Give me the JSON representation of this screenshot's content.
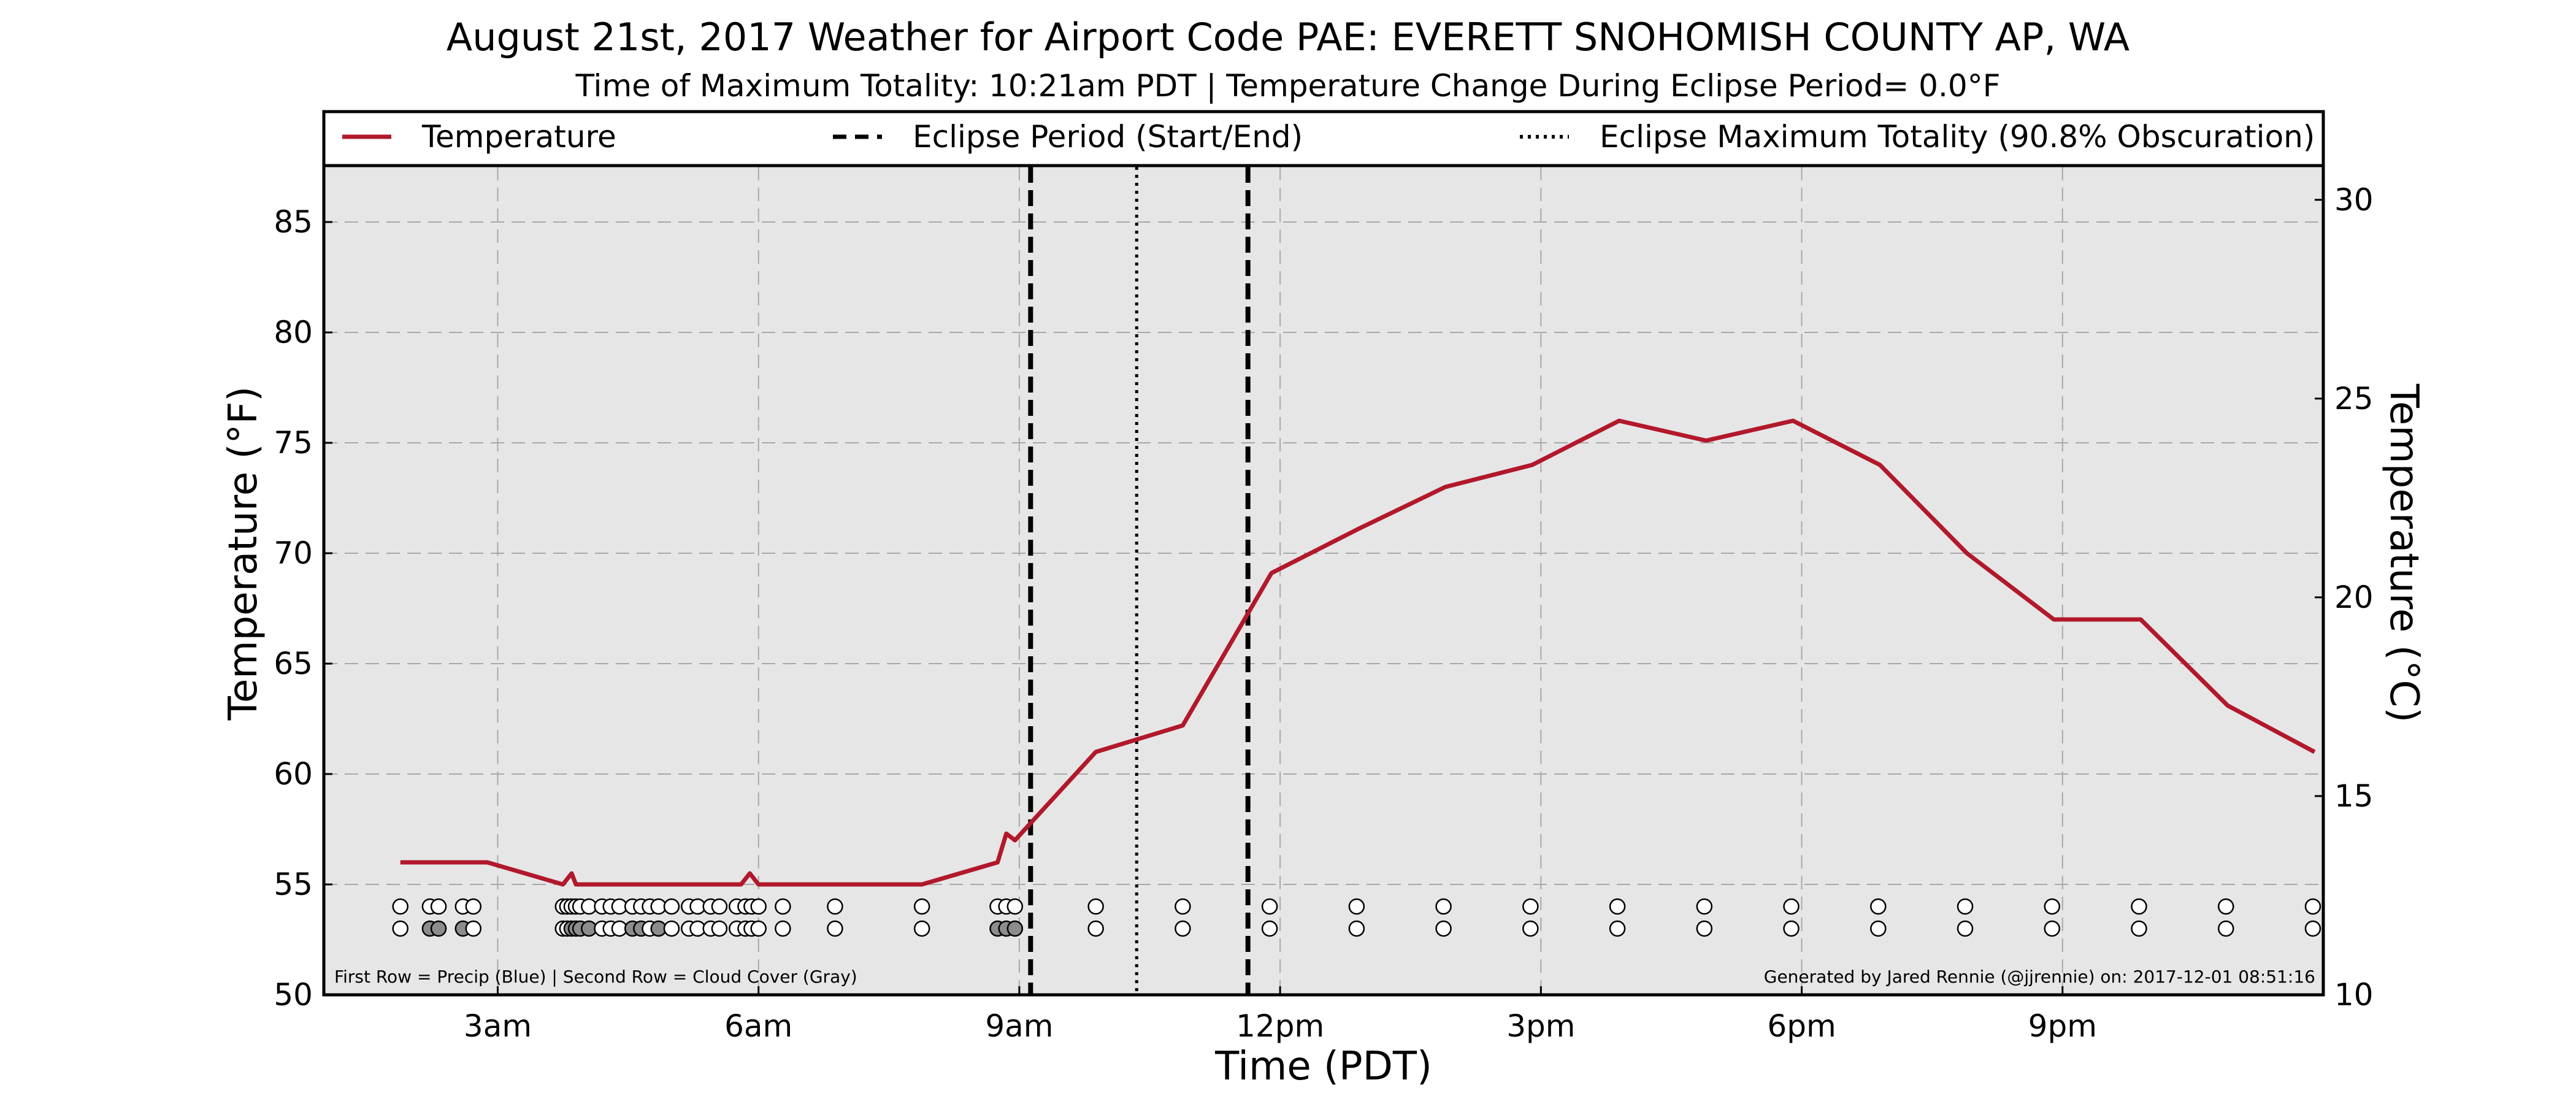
{
  "title": "August 21st, 2017 Weather for Airport Code PAE: EVERETT SNOHOMISH COUNTY AP, WA",
  "subtitle": "Time of Maximum Totality: 10:21am PDT | Temperature Change During Eclipse Period= 0.0°F",
  "legend": {
    "temperature": "Temperature",
    "eclipse_period": "Eclipse Period (Start/End)",
    "max_totality": "Eclipse Maximum Totality (90.8% Obscuration)"
  },
  "footer_left": "First Row = Precip (Blue) | Second Row = Cloud Cover (Gray)",
  "footer_right": "Generated by Jared Rennie (@jjrennie) on: 2017-12-01 08:51:16",
  "colors": {
    "temperature_line": "#b2182b",
    "plot_background": "#e6e6e6",
    "grid": "#a8a8a8",
    "cloud_fill": "#8c8c8c"
  },
  "chart_data": {
    "type": "line",
    "title": "August 21st, 2017 Weather for Airport Code PAE: EVERETT SNOHOMISH COUNTY AP, WA",
    "xlabel": "Time (PDT)",
    "ylabel": "Temperature (°F)",
    "ylabel_right": "Temperature (°C)",
    "xlim": [
      1.0,
      24.0
    ],
    "ylim": [
      50,
      87.5
    ],
    "ylim_right": [
      10,
      30.83
    ],
    "grid": true,
    "legend_position": "top",
    "x_ticks": [
      {
        "x": 3,
        "label": "3am"
      },
      {
        "x": 6,
        "label": "6am"
      },
      {
        "x": 9,
        "label": "9am"
      },
      {
        "x": 12,
        "label": "12pm"
      },
      {
        "x": 15,
        "label": "3pm"
      },
      {
        "x": 18,
        "label": "6pm"
      },
      {
        "x": 21,
        "label": "9pm"
      }
    ],
    "y_ticks": [
      50,
      55,
      60,
      65,
      70,
      75,
      80,
      85
    ],
    "y_ticks_right": [
      10,
      15,
      20,
      25,
      30
    ],
    "series": [
      {
        "name": "Temperature",
        "x": [
          1.88,
          2.88,
          3.75,
          3.85,
          3.9,
          5.8,
          5.9,
          6.0,
          7.0,
          7.88,
          8.75,
          8.85,
          8.95,
          9.88,
          10.88,
          11.9,
          12.9,
          13.9,
          14.9,
          15.9,
          16.9,
          17.9,
          18.9,
          19.9,
          20.9,
          21.9,
          22.9,
          23.9
        ],
        "y": [
          56,
          56,
          55,
          55.5,
          55,
          55,
          55.5,
          55,
          55,
          55,
          56,
          57.3,
          57,
          61,
          62.2,
          69.1,
          71.1,
          73,
          74,
          76,
          75.1,
          76,
          74,
          70,
          67,
          67,
          63.1,
          61
        ]
      }
    ],
    "eclipse_start": 9.13,
    "eclipse_end": 11.63,
    "max_totality": 10.35,
    "precip_row_times": [
      1.88,
      2.22,
      2.32,
      2.6,
      2.72,
      3.75,
      3.8,
      3.85,
      3.9,
      3.95,
      4.05,
      4.2,
      4.3,
      4.4,
      4.55,
      4.65,
      4.75,
      4.85,
      5.0,
      5.2,
      5.3,
      5.45,
      5.55,
      5.75,
      5.85,
      5.92,
      6.0,
      6.28,
      6.88,
      7.88,
      8.75,
      8.85,
      8.95,
      9.88,
      10.88,
      11.88,
      12.88,
      13.88,
      14.88,
      15.88,
      16.88,
      17.88,
      18.88,
      19.88,
      20.88,
      21.88,
      22.88,
      23.88
    ],
    "cloud_row_times": [
      1.88,
      2.22,
      2.32,
      2.6,
      2.72,
      3.75,
      3.8,
      3.85,
      3.9,
      3.95,
      4.05,
      4.2,
      4.3,
      4.4,
      4.55,
      4.65,
      4.75,
      4.85,
      5.0,
      5.2,
      5.3,
      5.45,
      5.55,
      5.75,
      5.85,
      5.92,
      6.0,
      6.28,
      6.88,
      7.88,
      8.75,
      8.85,
      8.95,
      9.88,
      10.88,
      11.88,
      12.88,
      13.88,
      14.88,
      15.88,
      16.88,
      17.88,
      18.88,
      19.88,
      20.88,
      21.88,
      22.88,
      23.88
    ],
    "cloud_row_gray": [
      false,
      true,
      true,
      true,
      false,
      false,
      false,
      true,
      true,
      true,
      true,
      false,
      false,
      false,
      true,
      true,
      false,
      true,
      false,
      false,
      false,
      false,
      false,
      false,
      false,
      false,
      false,
      false,
      false,
      false,
      true,
      true,
      true,
      false,
      false,
      false,
      false,
      false,
      false,
      false,
      false,
      false,
      false,
      false,
      false,
      false,
      false,
      false
    ]
  }
}
